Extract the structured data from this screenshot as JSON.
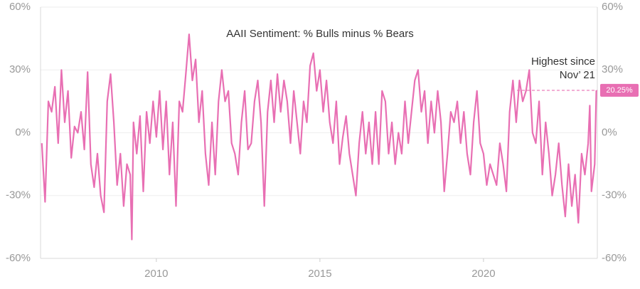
{
  "chart_data": {
    "type": "line",
    "title": "AAII Sentiment: % Bulls minus % Bears",
    "annotation": [
      "Highest since",
      "Nov’ 21"
    ],
    "end_label": "20.25%",
    "color": "#e86fb3",
    "x": [
      2006.5,
      2006.6,
      2006.7,
      2006.8,
      2006.9,
      2007.0,
      2007.1,
      2007.2,
      2007.3,
      2007.4,
      2007.5,
      2007.6,
      2007.7,
      2007.8,
      2007.9,
      2008.0,
      2008.1,
      2008.2,
      2008.3,
      2008.4,
      2008.5,
      2008.6,
      2008.7,
      2008.8,
      2008.9,
      2009.0,
      2009.1,
      2009.2,
      2009.25,
      2009.3,
      2009.4,
      2009.5,
      2009.6,
      2009.7,
      2009.8,
      2009.9,
      2010.0,
      2010.1,
      2010.2,
      2010.3,
      2010.4,
      2010.5,
      2010.6,
      2010.7,
      2010.8,
      2010.9,
      2011.0,
      2011.1,
      2011.2,
      2011.3,
      2011.4,
      2011.5,
      2011.6,
      2011.7,
      2011.8,
      2011.9,
      2012.0,
      2012.1,
      2012.2,
      2012.3,
      2012.4,
      2012.5,
      2012.6,
      2012.7,
      2012.8,
      2012.9,
      2013.0,
      2013.1,
      2013.2,
      2013.3,
      2013.4,
      2013.5,
      2013.6,
      2013.7,
      2013.8,
      2013.9,
      2014.0,
      2014.1,
      2014.2,
      2014.3,
      2014.4,
      2014.5,
      2014.6,
      2014.7,
      2014.8,
      2014.9,
      2015.0,
      2015.1,
      2015.2,
      2015.3,
      2015.4,
      2015.5,
      2015.6,
      2015.7,
      2015.8,
      2015.9,
      2016.0,
      2016.1,
      2016.2,
      2016.3,
      2016.4,
      2016.5,
      2016.6,
      2016.7,
      2016.8,
      2016.9,
      2017.0,
      2017.1,
      2017.2,
      2017.3,
      2017.4,
      2017.5,
      2017.6,
      2017.7,
      2017.8,
      2017.9,
      2018.0,
      2018.1,
      2018.2,
      2018.3,
      2018.4,
      2018.5,
      2018.6,
      2018.7,
      2018.8,
      2018.9,
      2019.0,
      2019.1,
      2019.2,
      2019.3,
      2019.4,
      2019.5,
      2019.6,
      2019.7,
      2019.8,
      2019.9,
      2020.0,
      2020.1,
      2020.2,
      2020.3,
      2020.4,
      2020.5,
      2020.6,
      2020.7,
      2020.8,
      2020.9,
      2021.0,
      2021.1,
      2021.2,
      2021.3,
      2021.4,
      2021.5,
      2021.6,
      2021.7,
      2021.8,
      2021.9,
      2022.0,
      2022.1,
      2022.2,
      2022.3,
      2022.4,
      2022.5,
      2022.6,
      2022.7,
      2022.8,
      2022.9,
      2023.0,
      2023.1,
      2023.2,
      2023.25,
      2023.3,
      2023.4,
      2023.45
    ],
    "values": [
      -5,
      -33,
      15,
      10,
      22,
      -5,
      30,
      5,
      20,
      -12,
      3,
      0,
      10,
      -8,
      29,
      -15,
      -26,
      -10,
      -30,
      -38,
      15,
      28,
      5,
      -25,
      -10,
      -35,
      -15,
      -20,
      -51,
      5,
      -10,
      8,
      -28,
      10,
      -5,
      15,
      -2,
      20,
      -8,
      15,
      -20,
      5,
      -35,
      15,
      10,
      28,
      47,
      25,
      35,
      5,
      20,
      -10,
      -25,
      5,
      -20,
      15,
      30,
      15,
      20,
      -5,
      -10,
      -20,
      5,
      20,
      -8,
      -5,
      15,
      25,
      5,
      -35,
      10,
      25,
      5,
      28,
      10,
      25,
      15,
      -5,
      20,
      5,
      -10,
      15,
      5,
      32,
      38,
      20,
      30,
      10,
      25,
      5,
      -5,
      15,
      -15,
      -2,
      8,
      -10,
      -20,
      -30,
      -5,
      10,
      -10,
      5,
      -15,
      10,
      -15,
      20,
      15,
      -10,
      5,
      -15,
      0,
      -10,
      15,
      -5,
      10,
      25,
      30,
      10,
      20,
      -5,
      15,
      0,
      20,
      5,
      -28,
      -10,
      10,
      5,
      15,
      -5,
      10,
      -10,
      -20,
      5,
      20,
      -5,
      -10,
      -25,
      -15,
      -20,
      -25,
      -5,
      -15,
      -28,
      10,
      25,
      5,
      25,
      15,
      20,
      30,
      0,
      -5,
      15,
      -20,
      5,
      -10,
      -30,
      -20,
      -5,
      -25,
      -40,
      -15,
      -35,
      -20,
      -43,
      -10,
      -20,
      -5,
      13,
      -28,
      -15,
      20.25
    ],
    "xlim": [
      2006.46,
      2023.48
    ],
    "xticks": [
      2010,
      2015,
      2020
    ],
    "ylim": [
      -60,
      60
    ],
    "yticks": [
      {
        "value": -60,
        "label": "-60%"
      },
      {
        "value": -30,
        "label": "-30%"
      },
      {
        "value": 0,
        "label": "0%"
      },
      {
        "value": 30,
        "label": "30%"
      },
      {
        "value": 60,
        "label": "60%"
      }
    ],
    "y2lim": [
      -60,
      60
    ],
    "y2ticks": [
      {
        "value": -60,
        "label": "-60%"
      },
      {
        "value": -30,
        "label": "-30%"
      },
      {
        "value": 0,
        "label": "0%"
      },
      {
        "value": 30,
        "label": "30%"
      },
      {
        "value": 60,
        "label": "60%"
      }
    ],
    "grid": true
  }
}
